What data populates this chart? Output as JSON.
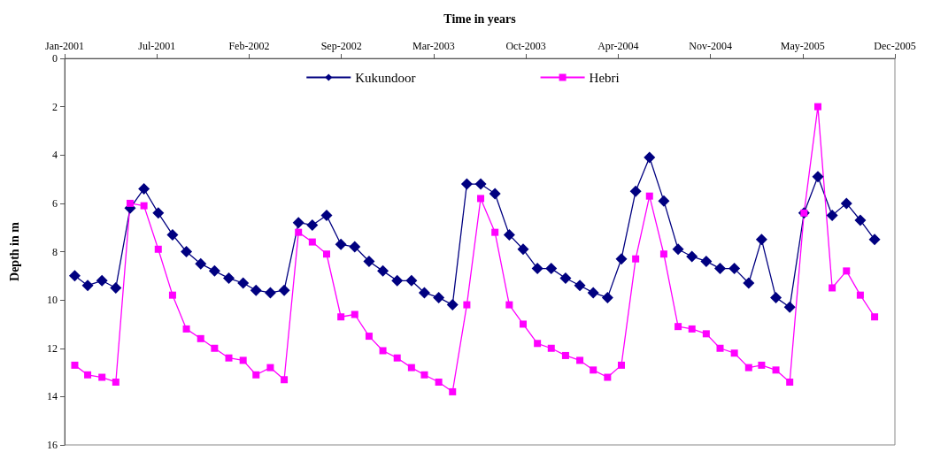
{
  "chart_data": {
    "type": "line",
    "xlabel": "Time in years",
    "ylabel": "Depth in m",
    "x": [
      "2001-02",
      "2001-03",
      "2001-04",
      "2001-05",
      "2001-06",
      "2001-07",
      "2001-08",
      "2001-09",
      "2001-10",
      "2001-11",
      "2001-12",
      "2002-01",
      "2002-02",
      "2002-03",
      "2002-04",
      "2002-05",
      "2002-06",
      "2002-07",
      "2002-08",
      "2002-09",
      "2002-10",
      "2002-11",
      "2002-12",
      "2003-01",
      "2003-02",
      "2003-03",
      "2003-04",
      "2003-05",
      "2003-06",
      "2003-07",
      "2003-08",
      "2003-09",
      "2003-10",
      "2003-11",
      "2003-12",
      "2004-01",
      "2004-02",
      "2004-03",
      "2004-04",
      "2004-05",
      "2004-06",
      "2004-07",
      "2004-08",
      "2004-09",
      "2004-10",
      "2004-11",
      "2004-12",
      "2005-01",
      "2005-02",
      "2005-03",
      "2005-04",
      "2005-05",
      "2005-06",
      "2005-07",
      "2005-08",
      "2005-09",
      "2005-10",
      "2005-11"
    ],
    "series": [
      {
        "name": "Kukundoor",
        "color": "#000080",
        "marker": "diamond",
        "values": [
          9.0,
          9.4,
          9.2,
          9.5,
          6.2,
          5.4,
          6.4,
          7.3,
          8.0,
          8.5,
          8.8,
          9.1,
          9.3,
          9.6,
          9.7,
          9.6,
          6.8,
          6.9,
          6.5,
          7.7,
          7.8,
          8.4,
          8.8,
          9.2,
          9.2,
          9.7,
          9.9,
          10.2,
          5.2,
          5.2,
          5.6,
          7.3,
          7.9,
          8.7,
          8.7,
          9.1,
          9.4,
          9.7,
          9.9,
          8.3,
          5.5,
          4.1,
          5.9,
          7.9,
          8.2,
          8.4,
          8.7,
          8.7,
          9.3,
          7.5,
          9.9,
          10.3,
          6.4,
          4.9,
          6.5,
          6.0,
          6.7,
          7.5
        ]
      },
      {
        "name": "Hebri",
        "color": "#ff00ff",
        "marker": "square",
        "values": [
          12.7,
          13.1,
          13.2,
          13.4,
          6.0,
          6.1,
          7.9,
          9.8,
          11.2,
          11.6,
          12.0,
          12.4,
          12.5,
          13.1,
          12.8,
          13.3,
          7.2,
          7.6,
          8.1,
          10.7,
          10.6,
          11.5,
          12.1,
          12.4,
          12.8,
          13.1,
          13.4,
          13.8,
          10.2,
          5.8,
          7.2,
          10.2,
          11.0,
          11.8,
          12.0,
          12.3,
          12.5,
          12.9,
          13.2,
          12.7,
          8.3,
          5.7,
          8.1,
          11.1,
          11.2,
          11.4,
          12.0,
          12.2,
          12.8,
          12.7,
          12.9,
          13.4,
          6.4,
          2.0,
          9.5,
          8.8,
          9.8,
          10.7
        ]
      }
    ],
    "xlim": [
      "2001-01-10",
      "2005-12-15"
    ],
    "xticks": [
      {
        "value": "2001-01-10",
        "label": "Jan-2001"
      },
      {
        "value": "2001-07-29",
        "label": "Jul-2001"
      },
      {
        "value": "2002-02-14",
        "label": "Feb-2002"
      },
      {
        "value": "2002-09-02",
        "label": "Sep-2002"
      },
      {
        "value": "2003-03-21",
        "label": "Mar-2003"
      },
      {
        "value": "2003-10-07",
        "label": "Oct-2003"
      },
      {
        "value": "2004-04-24",
        "label": "Apr-2004"
      },
      {
        "value": "2004-11-10",
        "label": "Nov-2004"
      },
      {
        "value": "2005-05-29",
        "label": "May-2005"
      },
      {
        "value": "2005-12-15",
        "label": "Dec-2005"
      }
    ],
    "ylim": [
      16,
      0
    ],
    "yticks": [
      0,
      2,
      4,
      6,
      8,
      10,
      12,
      14,
      16
    ],
    "grid": false,
    "legend": "top",
    "line_style": "solid"
  }
}
